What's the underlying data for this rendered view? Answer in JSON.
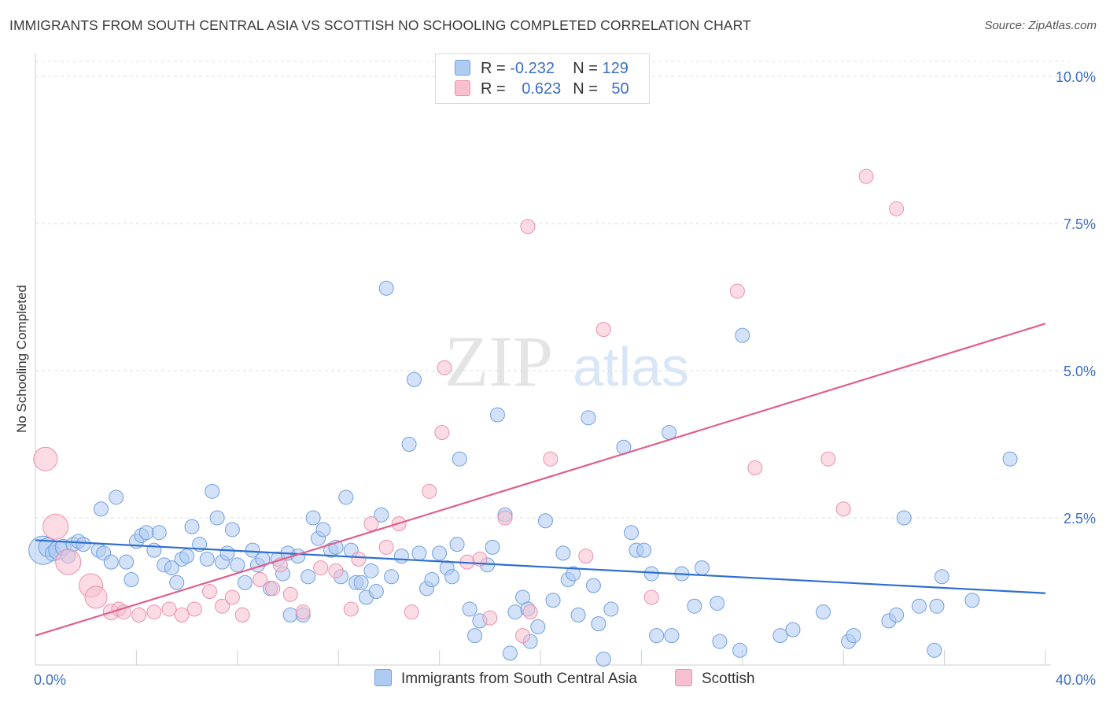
{
  "title": "IMMIGRANTS FROM SOUTH CENTRAL ASIA VS SCOTTISH NO SCHOOLING COMPLETED CORRELATION CHART",
  "source": "Source: ZipAtlas.com",
  "watermark": {
    "zip": "ZIP",
    "atlas": "atlas"
  },
  "legend": {
    "r_label": "R =",
    "n_label": "N =",
    "rows": [
      {
        "r": "-0.232",
        "n": "129",
        "color": "#aecbf2",
        "border": "#6f9fe0"
      },
      {
        "r": "0.623",
        "n": "50",
        "color": "#f8bfd0",
        "border": "#ec8fac"
      }
    ]
  },
  "chart_data": {
    "type": "scatter",
    "title": "IMMIGRANTS FROM SOUTH CENTRAL ASIA VS SCOTTISH NO SCHOOLING COMPLETED CORRELATION CHART",
    "xlabel": "",
    "ylabel": "No Schooling Completed",
    "xlim": [
      0,
      40
    ],
    "ylim": [
      0,
      10.5
    ],
    "x_tick_labels": [
      {
        "value": 0,
        "label": "0.0%"
      },
      {
        "value": 40,
        "label": "40.0%"
      }
    ],
    "y_tick_labels": [
      {
        "value": 2.5,
        "label": "2.5%"
      },
      {
        "value": 5.0,
        "label": "5.0%"
      },
      {
        "value": 7.5,
        "label": "7.5%"
      },
      {
        "value": 10.0,
        "label": "10.0%"
      }
    ],
    "x_minor_ticks": [
      0,
      4,
      8,
      12,
      16,
      20,
      24,
      28,
      32,
      36,
      40
    ],
    "grid": "horizontal-dashed",
    "legend_position": "top-center",
    "series": [
      {
        "name": "Immigrants from South Central Asia",
        "color": "#aecbf2",
        "stroke": "#6f9fe0",
        "trend": {
          "x": [
            0,
            40
          ],
          "y": [
            2.12,
            1.22
          ],
          "color": "#2f6fd0"
        },
        "points": [
          [
            0.3,
            1.95,
            18
          ],
          [
            0.5,
            2.0,
            12
          ],
          [
            0.7,
            1.9,
            10
          ],
          [
            0.9,
            1.95,
            12
          ],
          [
            1.1,
            2.0,
            10
          ],
          [
            1.3,
            1.85,
            9
          ],
          [
            1.5,
            2.05,
            9
          ],
          [
            1.7,
            2.1,
            9
          ],
          [
            1.9,
            2.05,
            9
          ],
          [
            2.5,
            1.95,
            9
          ],
          [
            2.6,
            2.65,
            9
          ],
          [
            2.7,
            1.9,
            9
          ],
          [
            3.0,
            1.75,
            9
          ],
          [
            3.2,
            2.85,
            9
          ],
          [
            3.6,
            1.75,
            9
          ],
          [
            3.8,
            1.45,
            9
          ],
          [
            4.0,
            2.1,
            9
          ],
          [
            4.2,
            2.2,
            9
          ],
          [
            4.4,
            2.25,
            9
          ],
          [
            4.7,
            1.95,
            9
          ],
          [
            4.9,
            2.25,
            9
          ],
          [
            5.1,
            1.7,
            9
          ],
          [
            5.4,
            1.65,
            9
          ],
          [
            5.6,
            1.4,
            9
          ],
          [
            5.8,
            1.8,
            9
          ],
          [
            6.0,
            1.85,
            9
          ],
          [
            6.2,
            2.35,
            9
          ],
          [
            6.5,
            2.05,
            9
          ],
          [
            6.8,
            1.8,
            9
          ],
          [
            7.0,
            2.95,
            9
          ],
          [
            7.2,
            2.5,
            9
          ],
          [
            7.4,
            1.75,
            9
          ],
          [
            7.6,
            1.9,
            9
          ],
          [
            7.8,
            2.3,
            9
          ],
          [
            8.0,
            1.7,
            9
          ],
          [
            8.3,
            1.4,
            9
          ],
          [
            8.6,
            1.95,
            9
          ],
          [
            8.8,
            1.7,
            9
          ],
          [
            9.0,
            1.8,
            9
          ],
          [
            9.3,
            1.3,
            9
          ],
          [
            9.6,
            1.8,
            9
          ],
          [
            9.8,
            1.55,
            9
          ],
          [
            10.0,
            1.9,
            9
          ],
          [
            10.1,
            0.85,
            9
          ],
          [
            10.4,
            1.85,
            9
          ],
          [
            10.6,
            0.85,
            9
          ],
          [
            10.8,
            1.5,
            9
          ],
          [
            11.0,
            2.5,
            9
          ],
          [
            11.2,
            2.15,
            9
          ],
          [
            11.4,
            2.3,
            9
          ],
          [
            11.7,
            1.95,
            9
          ],
          [
            11.9,
            2.0,
            9
          ],
          [
            12.1,
            1.5,
            9
          ],
          [
            12.3,
            2.85,
            9
          ],
          [
            12.5,
            1.95,
            9
          ],
          [
            12.7,
            1.4,
            9
          ],
          [
            12.9,
            1.4,
            9
          ],
          [
            13.1,
            1.15,
            9
          ],
          [
            13.3,
            1.6,
            9
          ],
          [
            13.5,
            1.25,
            9
          ],
          [
            13.7,
            2.55,
            9
          ],
          [
            13.9,
            6.4,
            9
          ],
          [
            14.1,
            1.5,
            9
          ],
          [
            14.5,
            1.85,
            9
          ],
          [
            14.8,
            3.75,
            9
          ],
          [
            15.0,
            4.85,
            9
          ],
          [
            15.2,
            1.9,
            9
          ],
          [
            15.5,
            1.3,
            9
          ],
          [
            15.7,
            1.45,
            9
          ],
          [
            16.0,
            1.9,
            9
          ],
          [
            16.3,
            1.65,
            9
          ],
          [
            16.5,
            1.5,
            9
          ],
          [
            16.7,
            2.05,
            9
          ],
          [
            16.8,
            3.5,
            9
          ],
          [
            17.2,
            0.95,
            9
          ],
          [
            17.4,
            0.5,
            9
          ],
          [
            17.6,
            0.75,
            9
          ],
          [
            17.9,
            1.7,
            9
          ],
          [
            18.1,
            2.0,
            9
          ],
          [
            18.3,
            4.25,
            9
          ],
          [
            18.6,
            2.55,
            9
          ],
          [
            18.8,
            0.2,
            9
          ],
          [
            19.0,
            0.9,
            9
          ],
          [
            19.3,
            1.15,
            9
          ],
          [
            19.5,
            0.95,
            9
          ],
          [
            19.6,
            0.4,
            9
          ],
          [
            19.9,
            0.65,
            9
          ],
          [
            20.2,
            2.45,
            9
          ],
          [
            20.5,
            1.1,
            9
          ],
          [
            20.9,
            1.9,
            9
          ],
          [
            21.1,
            1.45,
            9
          ],
          [
            21.3,
            1.55,
            9
          ],
          [
            21.5,
            0.85,
            9
          ],
          [
            21.9,
            4.2,
            9
          ],
          [
            22.1,
            1.35,
            9
          ],
          [
            22.3,
            0.7,
            9
          ],
          [
            22.5,
            0.1,
            9
          ],
          [
            22.8,
            0.95,
            9
          ],
          [
            23.3,
            3.7,
            9
          ],
          [
            23.6,
            2.25,
            9
          ],
          [
            23.8,
            1.95,
            9
          ],
          [
            24.1,
            1.95,
            9
          ],
          [
            24.4,
            1.55,
            9
          ],
          [
            24.6,
            0.5,
            9
          ],
          [
            25.1,
            3.95,
            9
          ],
          [
            25.2,
            0.5,
            9
          ],
          [
            25.6,
            1.55,
            9
          ],
          [
            26.1,
            1.0,
            9
          ],
          [
            26.4,
            1.65,
            9
          ],
          [
            27.0,
            1.05,
            9
          ],
          [
            27.1,
            0.4,
            9
          ],
          [
            27.9,
            0.25,
            9
          ],
          [
            28.0,
            5.6,
            9
          ],
          [
            29.5,
            0.5,
            9
          ],
          [
            30.0,
            0.6,
            9
          ],
          [
            31.2,
            0.9,
            9
          ],
          [
            32.2,
            0.4,
            9
          ],
          [
            32.4,
            0.5,
            9
          ],
          [
            33.8,
            0.75,
            9
          ],
          [
            34.1,
            0.85,
            9
          ],
          [
            34.4,
            2.5,
            9
          ],
          [
            35.0,
            1.0,
            9
          ],
          [
            35.6,
            0.25,
            9
          ],
          [
            35.7,
            1.0,
            9
          ],
          [
            35.9,
            1.5,
            9
          ],
          [
            37.1,
            1.1,
            9
          ],
          [
            38.6,
            3.5,
            9
          ]
        ]
      },
      {
        "name": "Scottish",
        "color": "#f8bfd0",
        "stroke": "#ec8fac",
        "trend": {
          "x": [
            0,
            40
          ],
          "y": [
            0.5,
            5.8
          ],
          "color": "#e0608c"
        },
        "points": [
          [
            0.4,
            3.5,
            15
          ],
          [
            0.8,
            2.35,
            16
          ],
          [
            1.3,
            1.75,
            16
          ],
          [
            2.2,
            1.35,
            15
          ],
          [
            2.4,
            1.15,
            14
          ],
          [
            3.0,
            0.9,
            10
          ],
          [
            3.3,
            0.95,
            9
          ],
          [
            3.5,
            0.9,
            9
          ],
          [
            4.1,
            0.85,
            9
          ],
          [
            4.7,
            0.9,
            9
          ],
          [
            5.3,
            0.95,
            9
          ],
          [
            5.8,
            0.85,
            9
          ],
          [
            6.3,
            0.95,
            9
          ],
          [
            6.9,
            1.25,
            9
          ],
          [
            7.4,
            1.0,
            9
          ],
          [
            7.8,
            1.15,
            9
          ],
          [
            8.2,
            0.85,
            9
          ],
          [
            8.9,
            1.45,
            9
          ],
          [
            9.4,
            1.3,
            9
          ],
          [
            9.7,
            1.7,
            9
          ],
          [
            10.1,
            1.2,
            9
          ],
          [
            10.6,
            0.9,
            9
          ],
          [
            11.3,
            1.65,
            9
          ],
          [
            11.9,
            1.6,
            9
          ],
          [
            12.5,
            0.95,
            9
          ],
          [
            12.8,
            1.8,
            9
          ],
          [
            13.3,
            2.4,
            9
          ],
          [
            13.9,
            2.0,
            9
          ],
          [
            14.4,
            2.4,
            9
          ],
          [
            14.9,
            0.9,
            9
          ],
          [
            15.6,
            2.95,
            9
          ],
          [
            16.1,
            3.95,
            9
          ],
          [
            16.2,
            5.05,
            9
          ],
          [
            17.1,
            1.75,
            9
          ],
          [
            17.6,
            1.8,
            9
          ],
          [
            18.0,
            0.8,
            9
          ],
          [
            18.6,
            2.5,
            9
          ],
          [
            19.3,
            0.5,
            9
          ],
          [
            19.6,
            0.9,
            9
          ],
          [
            19.5,
            7.45,
            9
          ],
          [
            20.4,
            3.5,
            9
          ],
          [
            21.8,
            1.85,
            9
          ],
          [
            22.5,
            5.7,
            9
          ],
          [
            24.4,
            1.15,
            9
          ],
          [
            27.8,
            6.35,
            9
          ],
          [
            28.5,
            3.35,
            9
          ],
          [
            31.4,
            3.5,
            9
          ],
          [
            32.0,
            2.65,
            9
          ],
          [
            32.9,
            8.3,
            9
          ],
          [
            34.1,
            7.75,
            9
          ]
        ]
      }
    ]
  },
  "bottom_legend": [
    "Immigrants from South Central Asia",
    "Scottish"
  ]
}
